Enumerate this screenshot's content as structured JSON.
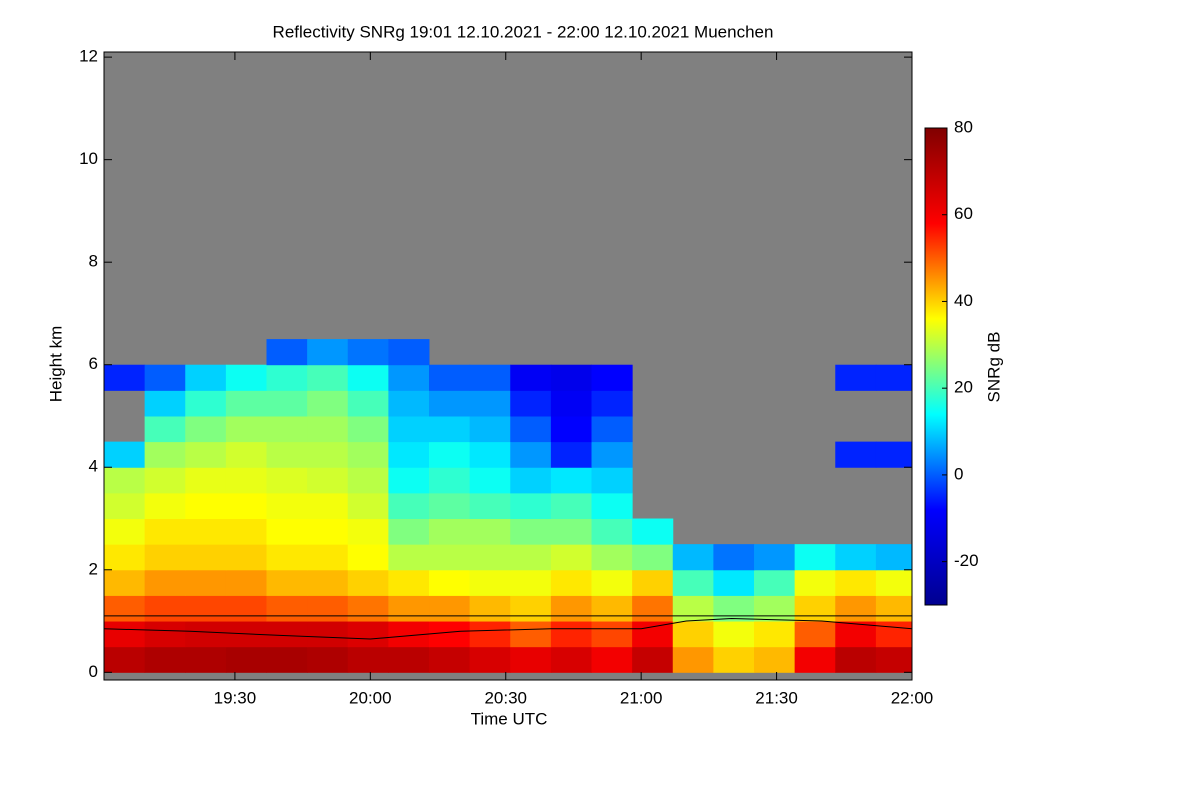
{
  "chart_data": {
    "type": "heatmap",
    "title": "Reflectivity SNRg   19:01 12.10.2021 - 22:00 12.10.2021 Muenchen",
    "x_label": "Time UTC",
    "y_label": "Height km",
    "colorbar_label": "SNRg dB",
    "xlim": [
      "19:01",
      "22:00"
    ],
    "xticks": [
      "19:30",
      "20:00",
      "20:30",
      "21:00",
      "21:30",
      "22:00"
    ],
    "ylim": [
      -0.15,
      12.1
    ],
    "yticks": [
      0,
      2,
      4,
      6,
      8,
      10,
      12
    ],
    "clim": [
      -30,
      80
    ],
    "cticks": [
      -20,
      0,
      20,
      40,
      60,
      80
    ],
    "colorscale": [
      "#00008f",
      "#0000ff",
      "#00ffff",
      "#ffff00",
      "#ff0000",
      "#800000"
    ],
    "missing_color": "#808080",
    "x": [
      "19:01",
      "19:10",
      "19:19",
      "19:28",
      "19:37",
      "19:46",
      "19:55",
      "20:04",
      "20:13",
      "20:22",
      "20:31",
      "20:40",
      "20:49",
      "20:58",
      "21:07",
      "21:16",
      "21:25",
      "21:34",
      "21:43",
      "21:52"
    ],
    "y": [
      0.25,
      0.75,
      1.25,
      1.75,
      2.25,
      2.75,
      3.25,
      3.75,
      4.25,
      4.75,
      5.25,
      5.75,
      6.25
    ],
    "z": [
      [
        70,
        72,
        72,
        73,
        73,
        72,
        70,
        70,
        68,
        65,
        62,
        65,
        60,
        68,
        45,
        40,
        42,
        60,
        70,
        68
      ],
      [
        62,
        65,
        66,
        66,
        66,
        66,
        64,
        60,
        58,
        55,
        50,
        55,
        52,
        60,
        40,
        35,
        38,
        50,
        60,
        55
      ],
      [
        50,
        52,
        52,
        52,
        50,
        50,
        48,
        45,
        45,
        42,
        40,
        45,
        42,
        48,
        30,
        25,
        28,
        40,
        45,
        42
      ],
      [
        42,
        45,
        45,
        45,
        42,
        42,
        40,
        38,
        36,
        35,
        35,
        38,
        35,
        40,
        20,
        12,
        20,
        35,
        38,
        35
      ],
      [
        38,
        40,
        40,
        40,
        38,
        38,
        36,
        30,
        30,
        30,
        30,
        32,
        28,
        25,
        8,
        2,
        5,
        15,
        10,
        8
      ],
      [
        35,
        38,
        38,
        38,
        36,
        36,
        35,
        25,
        28,
        28,
        25,
        25,
        20,
        15,
        null,
        null,
        null,
        null,
        null,
        null
      ],
      [
        32,
        35,
        36,
        36,
        35,
        35,
        32,
        20,
        22,
        20,
        18,
        20,
        15,
        null,
        null,
        null,
        null,
        null,
        null,
        null
      ],
      [
        30,
        32,
        34,
        34,
        33,
        32,
        30,
        15,
        18,
        15,
        10,
        12,
        10,
        null,
        null,
        null,
        null,
        null,
        null,
        null
      ],
      [
        10,
        28,
        30,
        32,
        30,
        30,
        28,
        12,
        15,
        12,
        5,
        -5,
        5,
        null,
        null,
        null,
        null,
        null,
        -5,
        -5
      ],
      [
        null,
        20,
        25,
        28,
        28,
        28,
        25,
        10,
        10,
        8,
        0,
        -8,
        0,
        null,
        null,
        null,
        null,
        null,
        null,
        null
      ],
      [
        null,
        10,
        18,
        22,
        22,
        25,
        20,
        8,
        5,
        5,
        -5,
        -10,
        -5,
        null,
        null,
        null,
        null,
        null,
        null,
        null
      ],
      [
        -5,
        0,
        10,
        15,
        18,
        20,
        15,
        5,
        0,
        0,
        -10,
        -12,
        -8,
        null,
        null,
        null,
        null,
        null,
        -5,
        -5
      ],
      [
        null,
        null,
        null,
        null,
        0,
        5,
        2,
        0,
        null,
        null,
        null,
        null,
        null,
        null,
        null,
        null,
        null,
        null,
        null,
        null
      ]
    ],
    "boundary_line": {
      "color": "#000000",
      "x": [
        "19:01",
        "19:20",
        "19:40",
        "20:00",
        "20:20",
        "20:40",
        "21:00",
        "21:10",
        "21:20",
        "21:40",
        "22:00"
      ],
      "values": [
        0.85,
        0.8,
        0.72,
        0.65,
        0.8,
        0.85,
        0.85,
        1.0,
        1.05,
        1.0,
        0.85
      ]
    },
    "reference_line": 1.1
  }
}
